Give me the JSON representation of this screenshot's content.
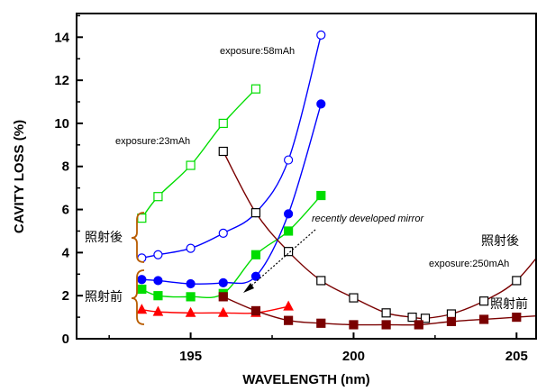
{
  "chart_data": {
    "type": "line",
    "xlabel": "WAVELENGTH (nm)",
    "ylabel": "CAVITY  LOSS (%)",
    "xlim": [
      191.5,
      205.6
    ],
    "ylim": [
      0,
      15.1
    ],
    "xticks": [
      195,
      200,
      205
    ],
    "yticks": [
      0,
      2,
      4,
      6,
      8,
      10,
      12,
      14
    ],
    "grid": false,
    "legend": "none",
    "annotations": {
      "exp23": "exposure:23mAh",
      "exp58": "exposure:58mAh",
      "exp250": "exposure:250mAh",
      "recent": "recently developed mirror",
      "after_left": "照射後",
      "before_left": "照射前",
      "after_right": "照射後",
      "before_right": "照射前"
    },
    "series": [
      {
        "color": "#00dd00",
        "marker": "square-open",
        "x": [
          193.5,
          194,
          195,
          196,
          197
        ],
        "y": [
          5.6,
          6.6,
          8.05,
          10.0,
          11.6
        ]
      },
      {
        "color": "#00dd00",
        "marker": "square-filled",
        "x": [
          193.5,
          194,
          195,
          196,
          197,
          198,
          199
        ],
        "y": [
          2.3,
          2.0,
          1.95,
          2.1,
          3.9,
          5.0,
          6.65
        ]
      },
      {
        "color": "#0000ff",
        "marker": "circle-open",
        "x": [
          193.5,
          194,
          195,
          196,
          197,
          198,
          199
        ],
        "y": [
          3.75,
          3.9,
          4.2,
          4.9,
          5.85,
          8.3,
          14.1
        ]
      },
      {
        "color": "#0000ff",
        "marker": "circle-filled",
        "x": [
          193.5,
          194,
          195,
          196,
          197,
          198,
          199
        ],
        "y": [
          2.75,
          2.7,
          2.55,
          2.6,
          2.9,
          5.8,
          10.9
        ]
      },
      {
        "color": "#ff0000",
        "marker": "triangle-filled",
        "x": [
          193.5,
          194,
          195,
          196,
          197,
          198
        ],
        "y": [
          1.35,
          1.25,
          1.2,
          1.2,
          1.2,
          1.5
        ]
      },
      {
        "color": "#7a0000",
        "marker": "square-open",
        "x": [
          196,
          197,
          198,
          199,
          200,
          201,
          201.8,
          202.2,
          203,
          204,
          205,
          206
        ],
        "y": [
          8.7,
          5.85,
          4.05,
          2.7,
          1.9,
          1.2,
          1.0,
          0.95,
          1.15,
          1.75,
          2.7,
          4.5
        ]
      },
      {
        "color": "#7a0000",
        "marker": "square-filled",
        "x": [
          196,
          197,
          198,
          199,
          200,
          201,
          202,
          203,
          204,
          205,
          206
        ],
        "y": [
          1.95,
          1.3,
          0.85,
          0.72,
          0.65,
          0.65,
          0.65,
          0.8,
          0.9,
          1.0,
          1.1
        ]
      }
    ]
  }
}
